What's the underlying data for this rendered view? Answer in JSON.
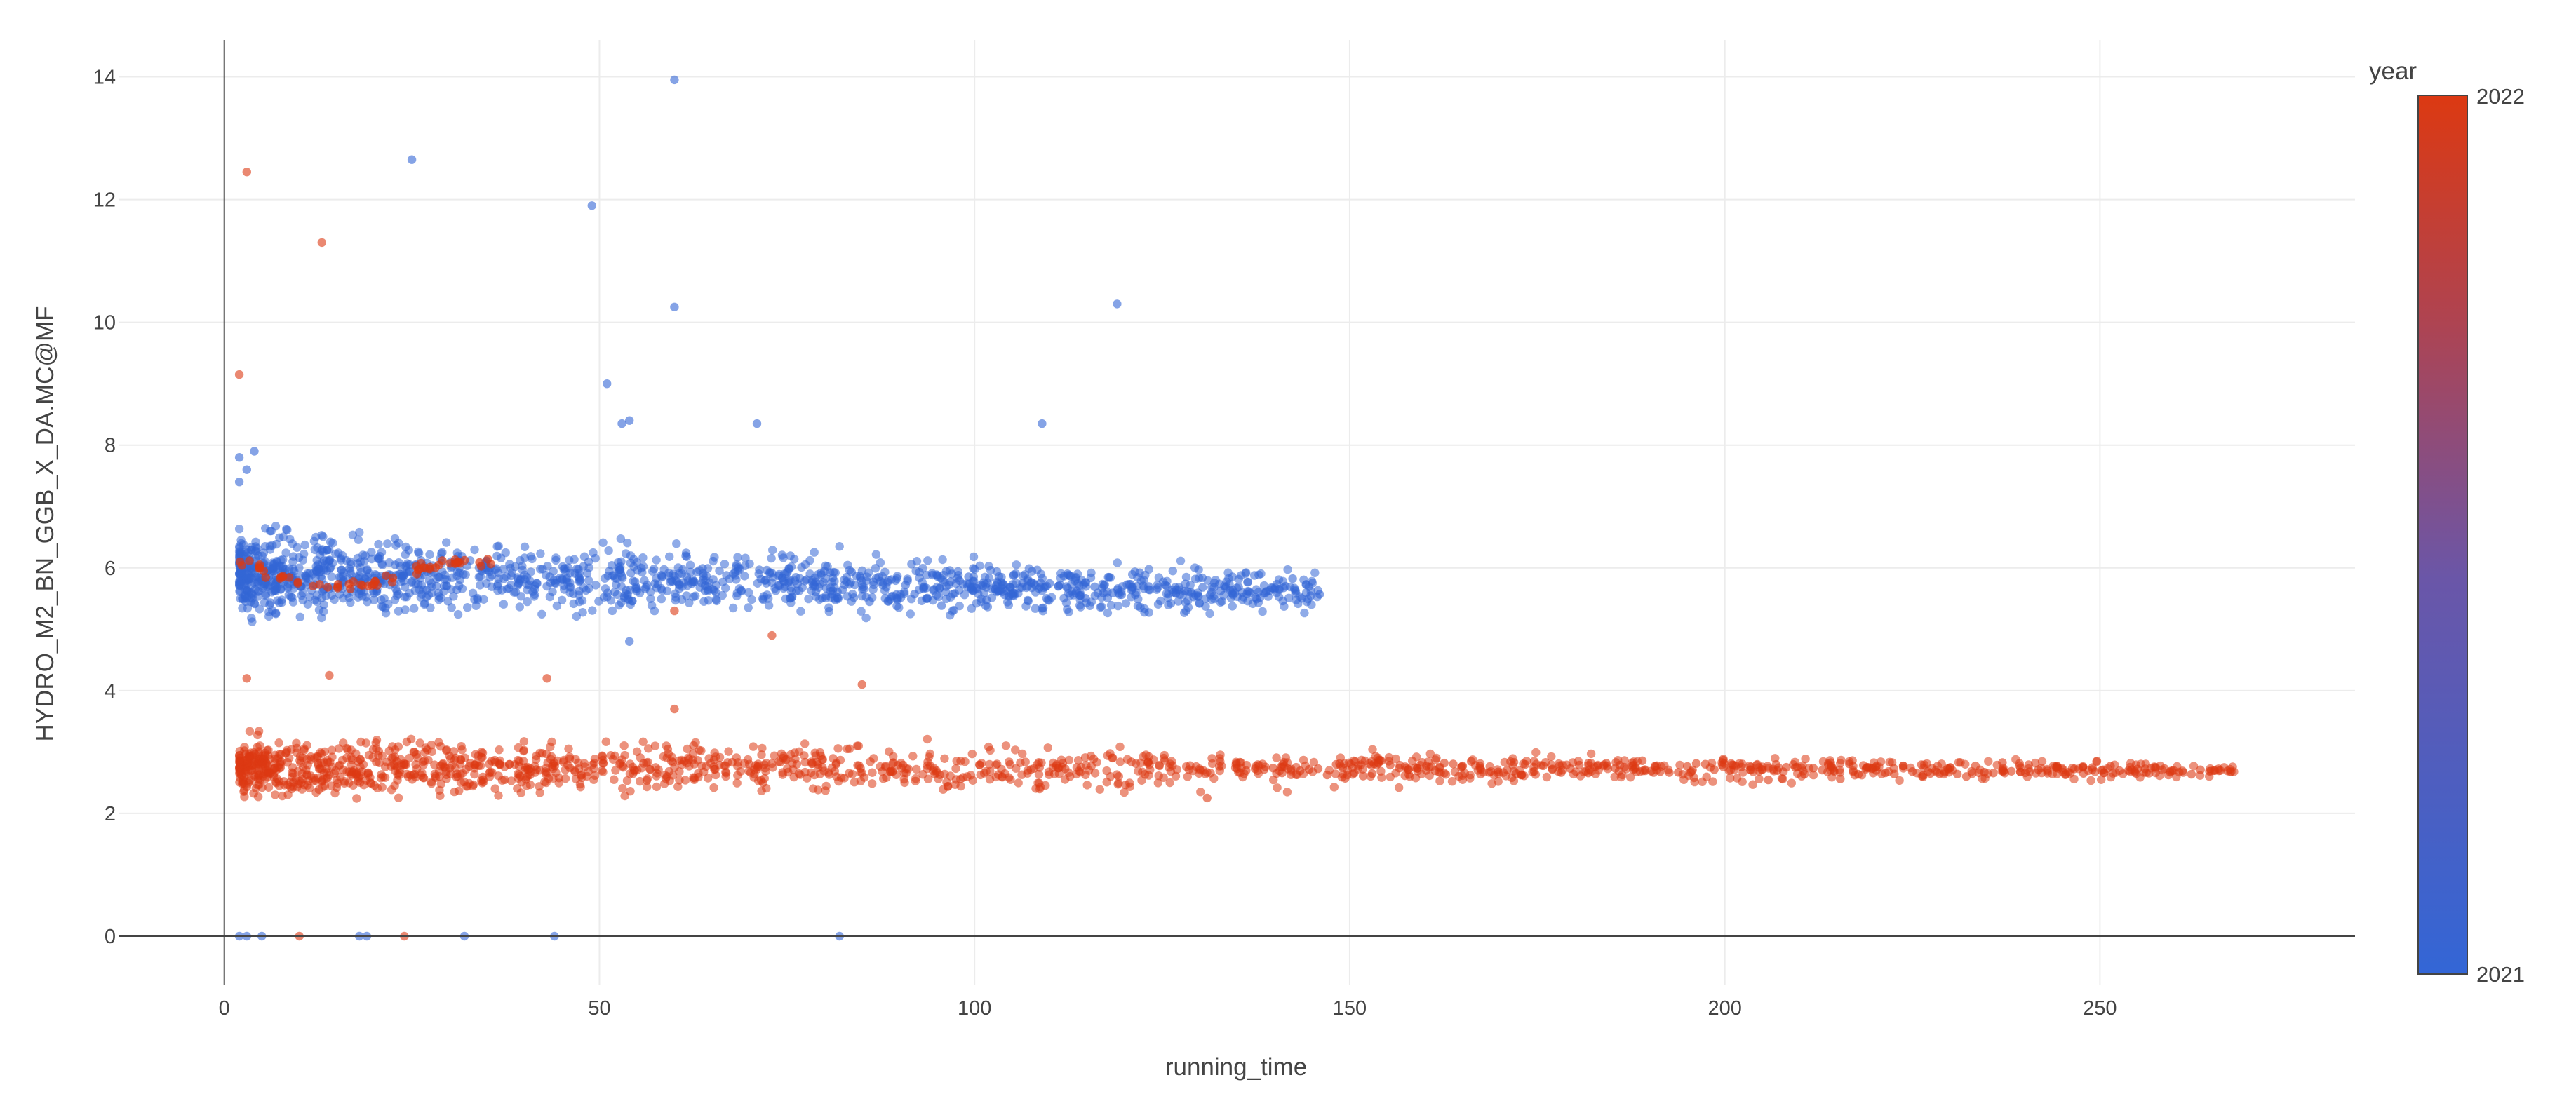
{
  "chart_data": {
    "type": "scatter",
    "title": "",
    "xlabel": "running_time",
    "ylabel": "HYDRO_M2_BN_GGB_X_DA.MC@MF",
    "xlim": [
      -14,
      284
    ],
    "ylim": [
      -0.8,
      14.6
    ],
    "x_ticks": [
      0,
      50,
      100,
      150,
      200,
      250
    ],
    "y_ticks": [
      0,
      2,
      4,
      6,
      8,
      10,
      12,
      14
    ],
    "grid": true,
    "colorbar": {
      "title": "year",
      "min_label": "2021",
      "max_label": "2022",
      "color_min": "#3366d6",
      "color_max": "#dc3912",
      "placement": "right"
    },
    "series": [
      {
        "year": 2021,
        "color": "#3366d6",
        "band": {
          "x_range": [
            2,
            146
          ],
          "center_start": 5.9,
          "center_end": 5.6,
          "spread_start": 0.65,
          "spread_end": 0.35
        },
        "outliers": [
          {
            "x": 60,
            "y": 13.95
          },
          {
            "x": 25,
            "y": 12.65
          },
          {
            "x": 49,
            "y": 11.9
          },
          {
            "x": 60,
            "y": 10.25
          },
          {
            "x": 119,
            "y": 10.3
          },
          {
            "x": 51,
            "y": 9.0
          },
          {
            "x": 53,
            "y": 8.35
          },
          {
            "x": 54,
            "y": 8.4
          },
          {
            "x": 71,
            "y": 8.35
          },
          {
            "x": 109,
            "y": 8.35
          },
          {
            "x": 2,
            "y": 7.8
          },
          {
            "x": 4,
            "y": 7.9
          },
          {
            "x": 3,
            "y": 7.6
          },
          {
            "x": 2,
            "y": 7.4
          },
          {
            "x": 54,
            "y": 4.8
          },
          {
            "x": 2,
            "y": 0
          },
          {
            "x": 3,
            "y": 0
          },
          {
            "x": 5,
            "y": 0
          },
          {
            "x": 18,
            "y": 0
          },
          {
            "x": 19,
            "y": 0
          },
          {
            "x": 32,
            "y": 0
          },
          {
            "x": 44,
            "y": 0
          },
          {
            "x": 82,
            "y": 0
          }
        ]
      },
      {
        "year": 2022,
        "color": "#dc3912",
        "band": {
          "x_range": [
            2,
            268
          ],
          "center_start": 2.75,
          "center_end": 2.7,
          "spread_start": 0.5,
          "spread_end": 0.12
        },
        "outliers": [
          {
            "x": 3,
            "y": 12.45
          },
          {
            "x": 13,
            "y": 11.3
          },
          {
            "x": 2,
            "y": 9.15
          },
          {
            "x": 85,
            "y": 4.1
          },
          {
            "x": 43,
            "y": 4.2
          },
          {
            "x": 60,
            "y": 3.7
          },
          {
            "x": 3,
            "y": 4.2
          },
          {
            "x": 14,
            "y": 4.25
          },
          {
            "x": 10,
            "y": 0
          },
          {
            "x": 24,
            "y": 0
          },
          {
            "x": 60,
            "y": 5.3
          },
          {
            "x": 73,
            "y": 4.9
          },
          {
            "x": 131,
            "y": 2.25
          }
        ],
        "secondary_trail": {
          "x_range": [
            2,
            37
          ],
          "y_start": 6.1,
          "y_end": 6.05,
          "dip": 5.7
        }
      }
    ]
  }
}
